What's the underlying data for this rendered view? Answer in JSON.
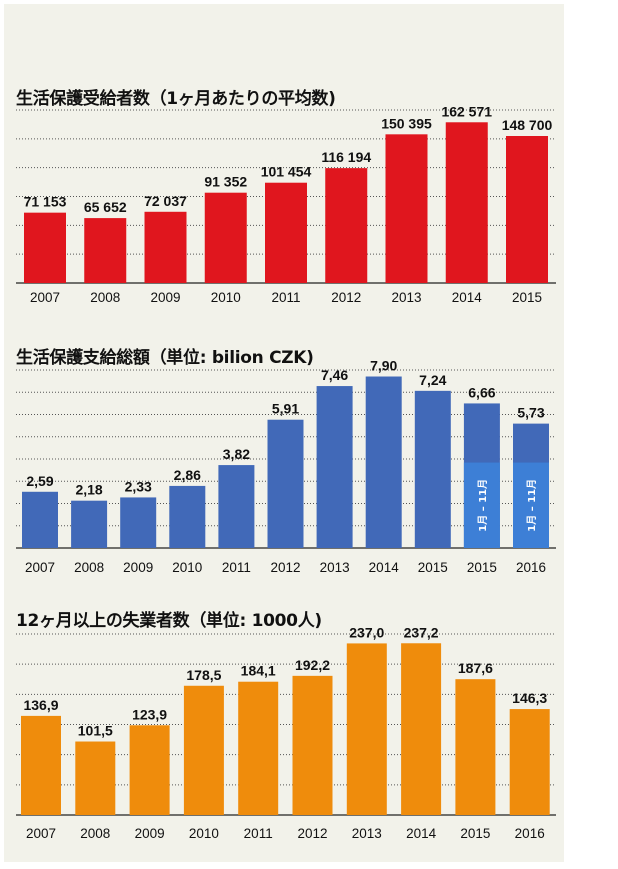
{
  "colors": {
    "panel": "#f2f2ea",
    "chart1_bar": "#e0161e",
    "chart2_bar": "#4169b8",
    "chart2_note_bar": "#3d7fd6",
    "chart3_bar": "#ef8c0c",
    "grid": "#555555"
  },
  "chart_data": [
    {
      "type": "bar",
      "title": "生活保護受給者数（1ヶ月あたりの平均数)",
      "categories": [
        "2007",
        "2008",
        "2009",
        "2010",
        "2011",
        "2012",
        "2013",
        "2014",
        "2015"
      ],
      "values": [
        71153,
        65652,
        72037,
        91352,
        101454,
        116194,
        150395,
        162571,
        148700
      ],
      "value_labels": [
        "71 153",
        "65 652",
        "72 037",
        "91 352",
        "101 454",
        "116 194",
        "150 395",
        "162 571",
        "148 700"
      ],
      "xlabel": "",
      "ylabel": "",
      "ylim": [
        0,
        175000
      ],
      "grid": true
    },
    {
      "type": "bar",
      "title": "生活保護支給総額（単位: bilion CZK)",
      "categories": [
        "2007",
        "2008",
        "2009",
        "2010",
        "2011",
        "2012",
        "2013",
        "2014",
        "2015",
        "2015",
        "2016"
      ],
      "values": [
        2.59,
        2.18,
        2.33,
        2.86,
        3.82,
        5.91,
        7.46,
        7.9,
        7.24,
        6.66,
        5.73
      ],
      "value_labels": [
        "2,59",
        "2,18",
        "2,33",
        "2,86",
        "3,82",
        "5,91",
        "7,46",
        "7,90",
        "7,24",
        "6,66",
        "5,73"
      ],
      "annotations": [
        {
          "category_index": 9,
          "text": "1月 – 11月"
        },
        {
          "category_index": 10,
          "text": "1月 – 11月"
        }
      ],
      "xlabel": "",
      "ylabel": "",
      "ylim": [
        0,
        8.2
      ],
      "grid": true
    },
    {
      "type": "bar",
      "title": "12ヶ月以上の失業者数（単位: 1000人)",
      "categories": [
        "2007",
        "2008",
        "2009",
        "2010",
        "2011",
        "2012",
        "2013",
        "2014",
        "2015",
        "2016"
      ],
      "values": [
        136.9,
        101.5,
        123.9,
        178.5,
        184.1,
        192.2,
        237.0,
        237.2,
        187.6,
        146.3
      ],
      "value_labels": [
        "136,9",
        "101,5",
        "123,9",
        "178,5",
        "184,1",
        "192,2",
        "237,0",
        "237,2",
        "187,6",
        "146,3"
      ],
      "xlabel": "",
      "ylabel": "",
      "ylim": [
        0,
        250
      ],
      "grid": true
    }
  ]
}
